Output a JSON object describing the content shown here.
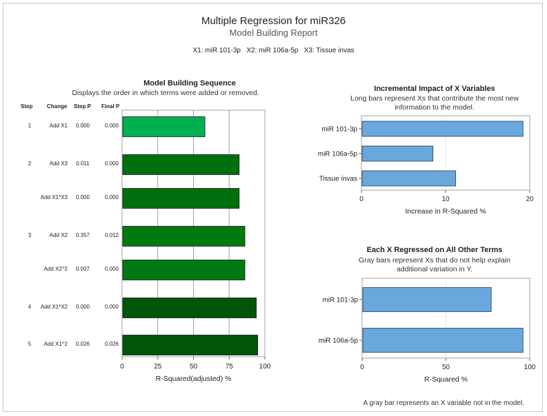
{
  "header": {
    "title": "Multiple Regression for miR326",
    "subtitle": "Model Building Report",
    "variables": "X1: miR 101-3p   X2: miR 106a-5p   X3: Tissue invas"
  },
  "sequence_panel": {
    "title": "Model Building Sequence",
    "subtitle": "Displays the order in which terms were added or removed.",
    "columns": {
      "step": "Step",
      "change": "Change",
      "step_p": "Step P",
      "final_p": "Final P"
    }
  },
  "impact_panel": {
    "title": "Incremental Impact of X Variables",
    "subtitle_line1": "Long bars represent Xs that contribute the most new",
    "subtitle_line2": "information to the model."
  },
  "regressed_panel": {
    "title": "Each X Regressed on All Other Terms",
    "subtitle_line1": "Gray bars represent Xs that do not help explain",
    "subtitle_line2": "additional variation in Y."
  },
  "footer": "A gray bar represents an X variable not in the model.",
  "colors": {
    "bar_blue": "#6aa7dc",
    "green_shades": [
      "#00b050",
      "#00700e",
      "#00700e",
      "#007a10",
      "#007a10",
      "#005508",
      "#005508"
    ]
  },
  "chart_data": [
    {
      "type": "bar",
      "orientation": "horizontal",
      "title": "Model Building Sequence",
      "xlabel": "R-Squared(adjusted) %",
      "xlim": [
        0,
        100
      ],
      "xticks": [
        0,
        25,
        50,
        75,
        100
      ],
      "rows": [
        {
          "step": "1",
          "change": "Add X1",
          "step_p": "0.000",
          "final_p": "0.000",
          "value": 58
        },
        {
          "step": "2",
          "change": "Add X3",
          "step_p": "0.011",
          "final_p": "0.000",
          "value": 82
        },
        {
          "step": "",
          "change": "Add X1*X3",
          "step_p": "0.000",
          "final_p": "0.000",
          "value": 82
        },
        {
          "step": "3",
          "change": "Add X2",
          "step_p": "0.357",
          "final_p": "0.012",
          "value": 86
        },
        {
          "step": "",
          "change": "Add X2^2",
          "step_p": "0.007",
          "final_p": "0.000",
          "value": 86
        },
        {
          "step": "4",
          "change": "Add X1*X2",
          "step_p": "0.000",
          "final_p": "0.000",
          "value": 94
        },
        {
          "step": "5",
          "change": "Add X1^2",
          "step_p": "0.026",
          "final_p": "0.026",
          "value": 95
        }
      ]
    },
    {
      "type": "bar",
      "orientation": "horizontal",
      "title": "Incremental Impact of X Variables",
      "xlabel": "Increase in R-Squared %",
      "xlim": [
        0,
        20
      ],
      "xticks": [
        0,
        10,
        20
      ],
      "categories": [
        "miR 101-3p",
        "miR 106a-5p",
        "Tissue invas"
      ],
      "values": [
        19.2,
        8.5,
        11.2
      ]
    },
    {
      "type": "bar",
      "orientation": "horizontal",
      "title": "Each X Regressed on All Other Terms",
      "xlabel": "R-Squared %",
      "xlim": [
        0,
        100
      ],
      "xticks": [
        0,
        50,
        100
      ],
      "categories": [
        "miR 101-3p",
        "miR 106a-5p"
      ],
      "values": [
        77,
        96
      ]
    }
  ]
}
